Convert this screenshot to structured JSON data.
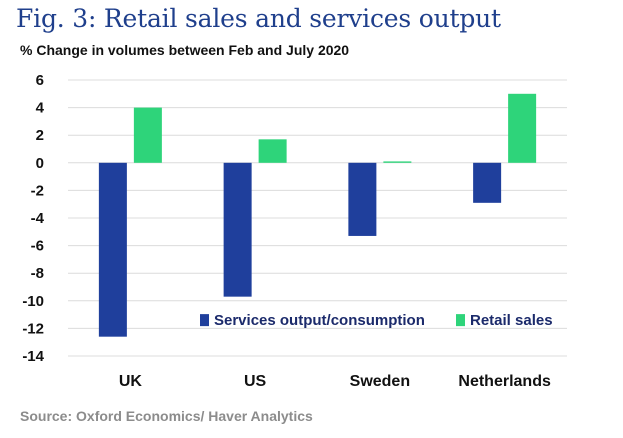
{
  "chart_data": {
    "type": "bar",
    "title": "Fig. 3: Retail sales and services output",
    "subtitle": "% Change in volumes between Feb and July 2020",
    "categories": [
      "UK",
      "US",
      "Sweden",
      "Netherlands"
    ],
    "series": [
      {
        "name": "Services output/consumption",
        "color": "#1f3f9c",
        "values": [
          -12.6,
          -9.7,
          -5.3,
          -2.9
        ]
      },
      {
        "name": "Retail sales",
        "color": "#2ed47a",
        "values": [
          4.0,
          1.7,
          0.1,
          5.0
        ]
      }
    ],
    "yticks": [
      6,
      4,
      2,
      0,
      -2,
      -4,
      -6,
      -8,
      -10,
      -12,
      -14
    ],
    "ylim": [
      -14,
      6
    ],
    "grid": true,
    "legend": "bottom-right",
    "source": "Source: Oxford Economics/ Haver Analytics"
  }
}
